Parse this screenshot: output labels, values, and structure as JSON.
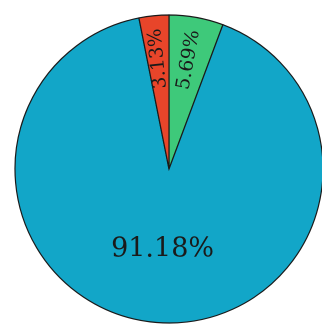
{
  "chart_data": {
    "type": "pie",
    "slices": [
      {
        "label": "5.69%",
        "value": 5.69,
        "color": "#3ec97a"
      },
      {
        "label": "91.18%",
        "value": 91.18,
        "color": "#12a6c8"
      },
      {
        "label": "3.13%",
        "value": 3.13,
        "color": "#e8452a"
      }
    ],
    "start": "top",
    "direction": "clockwise",
    "legend": "none"
  }
}
